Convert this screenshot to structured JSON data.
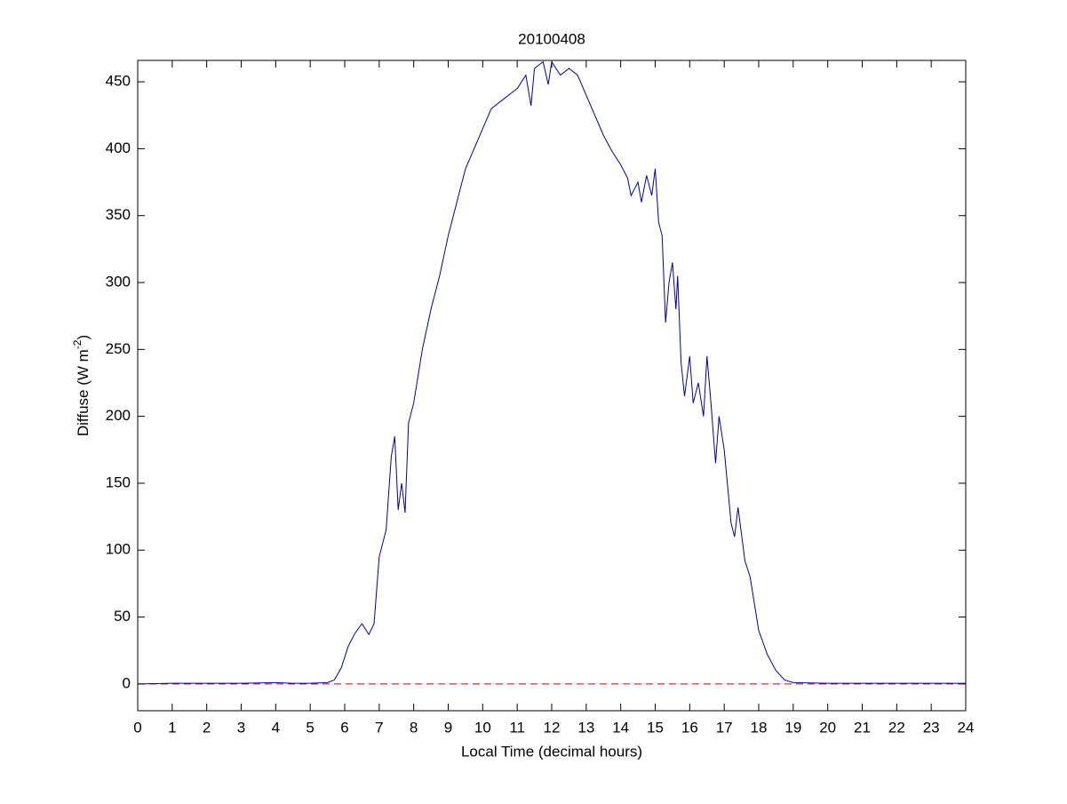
{
  "chart_data": {
    "type": "line",
    "title": "20100408",
    "x_label": "Local Time (decimal hours)",
    "y_label": {
      "text": "Diffuse (W m",
      "superscript": "-2",
      "suffix": ")"
    },
    "x": [
      0,
      1,
      2,
      3,
      4,
      4.5,
      5,
      5.5,
      5.7,
      5.9,
      6.1,
      6.3,
      6.5,
      6.7,
      6.85,
      7.0,
      7.2,
      7.35,
      7.45,
      7.55,
      7.65,
      7.75,
      7.85,
      8.0,
      8.25,
      8.5,
      8.75,
      9.0,
      9.25,
      9.5,
      9.75,
      10.0,
      10.25,
      10.5,
      10.75,
      11.0,
      11.25,
      11.4,
      11.5,
      11.75,
      11.9,
      12.0,
      12.25,
      12.5,
      12.75,
      13.0,
      13.25,
      13.5,
      13.75,
      14.0,
      14.2,
      14.3,
      14.5,
      14.6,
      14.75,
      14.9,
      15.0,
      15.1,
      15.2,
      15.3,
      15.4,
      15.5,
      15.6,
      15.65,
      15.75,
      15.85,
      16.0,
      16.1,
      16.25,
      16.4,
      16.5,
      16.6,
      16.75,
      16.85,
      17.0,
      17.2,
      17.3,
      17.4,
      17.5,
      17.6,
      17.75,
      18.0,
      18.25,
      18.5,
      18.75,
      19.0,
      20,
      21,
      22,
      23,
      24
    ],
    "series": [
      {
        "name": "Diffuse",
        "color": "#0000a0",
        "values": [
          0,
          0.5,
          0.5,
          0.5,
          1,
          0.5,
          0.5,
          1,
          3,
          12,
          28,
          38,
          45,
          37,
          45,
          95,
          115,
          170,
          185,
          130,
          150,
          128,
          195,
          210,
          250,
          280,
          305,
          335,
          360,
          385,
          400,
          415,
          430,
          435,
          440,
          445,
          455,
          432,
          460,
          465,
          448,
          465,
          455,
          460,
          455,
          440,
          425,
          410,
          398,
          388,
          378,
          365,
          375,
          360,
          380,
          365,
          385,
          345,
          335,
          270,
          300,
          315,
          280,
          305,
          240,
          215,
          245,
          210,
          225,
          200,
          245,
          215,
          165,
          200,
          175,
          120,
          110,
          132,
          112,
          92,
          80,
          40,
          22,
          10,
          3,
          1,
          0.5,
          0.5,
          0.5,
          0.5,
          0.5
        ]
      }
    ],
    "reference_line": {
      "value": 0,
      "color": "#c00000",
      "style": "dashed"
    },
    "xlim": [
      0,
      24
    ],
    "ylim": [
      -20,
      466
    ],
    "xticks": [
      0,
      1,
      2,
      3,
      4,
      5,
      6,
      7,
      8,
      9,
      10,
      11,
      12,
      13,
      14,
      15,
      16,
      17,
      18,
      19,
      20,
      21,
      22,
      23,
      24
    ],
    "yticks": [
      0,
      50,
      100,
      150,
      200,
      250,
      300,
      350,
      400,
      450
    ],
    "grid": false
  }
}
